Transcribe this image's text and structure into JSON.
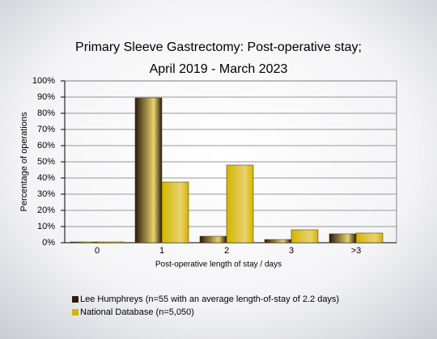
{
  "chart_data": {
    "type": "bar",
    "title": "Primary Sleeve Gastrectomy: Post-operative stay;",
    "subtitle": "April 2019 - March 2023",
    "x_label": "Post-operative length of stay / days",
    "y_label": "Percentage of operations",
    "categories": [
      "0",
      "1",
      "2",
      "3",
      ">3"
    ],
    "series": [
      {
        "name": "Lee Humphreys (n=55 with an average length-of-stay of 2.2 days)",
        "color": "#2a1c0c",
        "values": [
          0.5,
          89.5,
          4,
          2,
          5.5
        ]
      },
      {
        "name": "National Database (n=5,050)",
        "color": "#d2b500",
        "values": [
          0.5,
          37.5,
          48,
          8,
          6
        ]
      }
    ],
    "ylim": [
      0,
      100
    ],
    "yticks": [
      {
        "value": 0,
        "label": "0%"
      },
      {
        "value": 10,
        "label": "10%"
      },
      {
        "value": 20,
        "label": "20%"
      },
      {
        "value": 30,
        "label": "30%"
      },
      {
        "value": 40,
        "label": "40%"
      },
      {
        "value": 50,
        "label": "50%"
      },
      {
        "value": 60,
        "label": "60%"
      },
      {
        "value": 70,
        "label": "70%"
      },
      {
        "value": 80,
        "label": "80%"
      },
      {
        "value": 90,
        "label": "90%"
      },
      {
        "value": 100,
        "label": "100%"
      }
    ],
    "grid": true
  }
}
